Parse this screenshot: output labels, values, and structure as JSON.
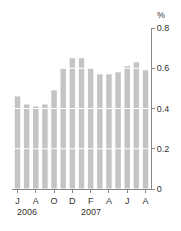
{
  "chart_data": {
    "type": "bar",
    "ylabel": "%",
    "categories": [
      "J",
      null,
      "A",
      null,
      "O",
      null,
      "D",
      null,
      "F",
      null,
      "A",
      null,
      "J",
      null,
      "A"
    ],
    "values": [
      0.46,
      0.42,
      0.41,
      0.42,
      0.49,
      0.6,
      0.65,
      0.65,
      0.6,
      0.57,
      0.57,
      0.58,
      0.61,
      0.63,
      0.59
    ],
    "color": "#c4c4c4",
    "ylim": [
      0,
      0.8
    ],
    "yticks": [
      0,
      0.2,
      0.4,
      0.6,
      0.8
    ],
    "grid": true,
    "annotations": [
      {
        "text": "2006",
        "x": 1
      },
      {
        "text": "2007",
        "x": 8
      }
    ]
  }
}
